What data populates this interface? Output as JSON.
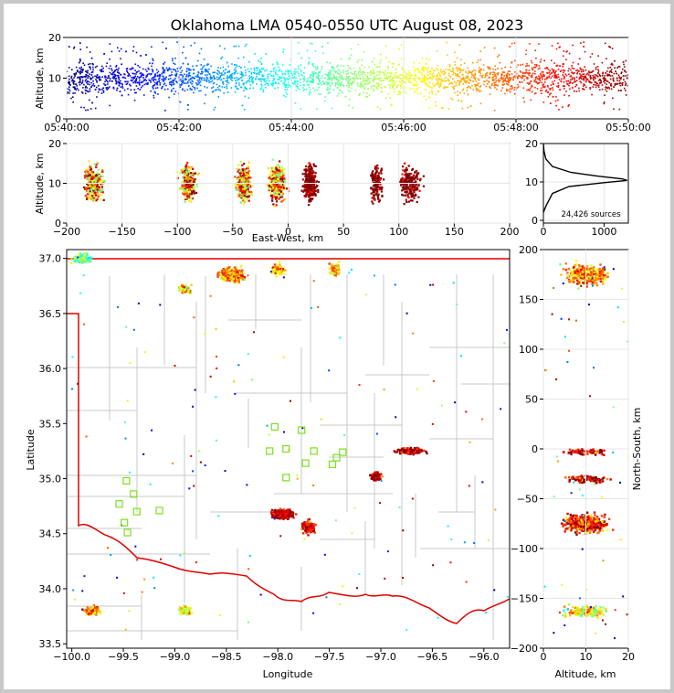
{
  "chart_data": [
    {
      "type": "scatter",
      "panel": "altitude-vs-time",
      "title": "Oklahoma LMA 0540-0550 UTC August 08, 2023",
      "xlabel": "",
      "ylabel": "Altitude, km",
      "xticks": [
        "05:40:00",
        "05:42:00",
        "05:44:00",
        "05:46:00",
        "05:48:00",
        "05:50:00"
      ],
      "yticks": [
        "0",
        "10",
        "20"
      ],
      "xlim_minutes": [
        0,
        10
      ],
      "ylim": [
        0,
        20
      ],
      "color_by": "time",
      "colormap": "jet",
      "altitude_band_km": [
        2,
        18
      ],
      "grid": true
    },
    {
      "type": "scatter",
      "panel": "altitude-vs-east-west",
      "xlabel": "East-West, km",
      "ylabel": "Altitude, km",
      "xticks": [
        "−200",
        "−150",
        "−100",
        "−50",
        "0",
        "50",
        "100",
        "150",
        "200"
      ],
      "yticks": [
        "0",
        "10",
        "20"
      ],
      "xlim": [
        -200,
        200
      ],
      "ylim": [
        0,
        20
      ],
      "clusters": [
        {
          "x_km": -175,
          "altitude_km": 10
        },
        {
          "x_km": -90,
          "altitude_km": 10
        },
        {
          "x_km": -40,
          "altitude_km": 10
        },
        {
          "x_km": -10,
          "altitude_km": 10
        },
        {
          "x_km": 20,
          "altitude_km": 10
        },
        {
          "x_km": 80,
          "altitude_km": 10
        },
        {
          "x_km": 110,
          "altitude_km": 10
        }
      ],
      "grid": true
    },
    {
      "type": "line",
      "panel": "altitude-histogram",
      "xticks": [
        "0",
        "1000"
      ],
      "yticks": [
        "0",
        "10",
        "20"
      ],
      "xlim": [
        0,
        1400
      ],
      "ylim": [
        0,
        20
      ],
      "annotation": "24,426 sources",
      "profile": [
        {
          "count": 0,
          "altitude_km": 20
        },
        {
          "count": 10,
          "altitude_km": 18
        },
        {
          "count": 40,
          "altitude_km": 16
        },
        {
          "count": 150,
          "altitude_km": 14
        },
        {
          "count": 450,
          "altitude_km": 12.5
        },
        {
          "count": 900,
          "altitude_km": 11.5
        },
        {
          "count": 1300,
          "altitude_km": 10.8
        },
        {
          "count": 1380,
          "altitude_km": 10.4
        },
        {
          "count": 1000,
          "altitude_km": 9.8
        },
        {
          "count": 420,
          "altitude_km": 8.8
        },
        {
          "count": 150,
          "altitude_km": 7
        },
        {
          "count": 50,
          "altitude_km": 4
        },
        {
          "count": 10,
          "altitude_km": 2.5
        },
        {
          "count": 0,
          "altitude_km": 2
        }
      ]
    },
    {
      "type": "scatter",
      "panel": "plan-view-map",
      "xlabel": "Longitude",
      "ylabel": "Latitude",
      "xticks": [
        "−100.0",
        "−99.5",
        "−99.0",
        "−98.5",
        "−98.0",
        "−97.5",
        "−97.0",
        "−96.5",
        "−96.0"
      ],
      "yticks": [
        "33.5",
        "34.0",
        "34.5",
        "35.0",
        "35.5",
        "36.0",
        "36.5",
        "37.0"
      ],
      "xlim": [
        -100.05,
        -95.75
      ],
      "ylim": [
        33.46,
        37.08
      ],
      "clusters": [
        {
          "lon": -99.9,
          "lat": 37.0
        },
        {
          "lon": -98.45,
          "lat": 36.85
        },
        {
          "lon": -98.0,
          "lat": 36.9
        },
        {
          "lon": -98.9,
          "lat": 36.72
        },
        {
          "lon": -97.45,
          "lat": 36.9
        },
        {
          "lon": -97.95,
          "lat": 34.68
        },
        {
          "lon": -97.7,
          "lat": 34.56
        },
        {
          "lon": -96.7,
          "lat": 35.25
        },
        {
          "lon": -97.05,
          "lat": 35.02
        },
        {
          "lon": -99.8,
          "lat": 33.8
        },
        {
          "lon": -98.9,
          "lat": 33.8
        }
      ],
      "stations": [
        {
          "lon": -98.03,
          "lat": 35.47
        },
        {
          "lon": -97.77,
          "lat": 35.44
        },
        {
          "lon": -98.08,
          "lat": 35.25
        },
        {
          "lon": -97.92,
          "lat": 35.27
        },
        {
          "lon": -97.65,
          "lat": 35.25
        },
        {
          "lon": -97.37,
          "lat": 35.24
        },
        {
          "lon": -97.43,
          "lat": 35.19
        },
        {
          "lon": -97.47,
          "lat": 35.13
        },
        {
          "lon": -97.73,
          "lat": 35.14
        },
        {
          "lon": -97.92,
          "lat": 35.01
        },
        {
          "lon": -99.47,
          "lat": 34.98
        },
        {
          "lon": -99.4,
          "lat": 34.86
        },
        {
          "lon": -99.54,
          "lat": 34.77
        },
        {
          "lon": -99.37,
          "lat": 34.7
        },
        {
          "lon": -99.15,
          "lat": 34.71
        },
        {
          "lon": -99.49,
          "lat": 34.6
        },
        {
          "lon": -99.46,
          "lat": 34.51
        }
      ]
    },
    {
      "type": "scatter",
      "panel": "north-south-vs-altitude",
      "xlabel": "Altitude, km",
      "ylabel": "North-South, km",
      "xticks": [
        "0",
        "10",
        "20"
      ],
      "yticks": [
        "−200",
        "−150",
        "−100",
        "−50",
        "0",
        "50",
        "100",
        "150",
        "200"
      ],
      "xlim": [
        0,
        20
      ],
      "ylim": [
        -200,
        200
      ],
      "clusters": [
        {
          "ns_km": 175,
          "altitude_km": 10
        },
        {
          "ns_km": -3,
          "altitude_km": 10
        },
        {
          "ns_km": -30,
          "altitude_km": 10
        },
        {
          "ns_km": -75,
          "altitude_km": 10
        },
        {
          "ns_km": -163,
          "altitude_km": 10
        }
      ],
      "grid": true
    }
  ]
}
